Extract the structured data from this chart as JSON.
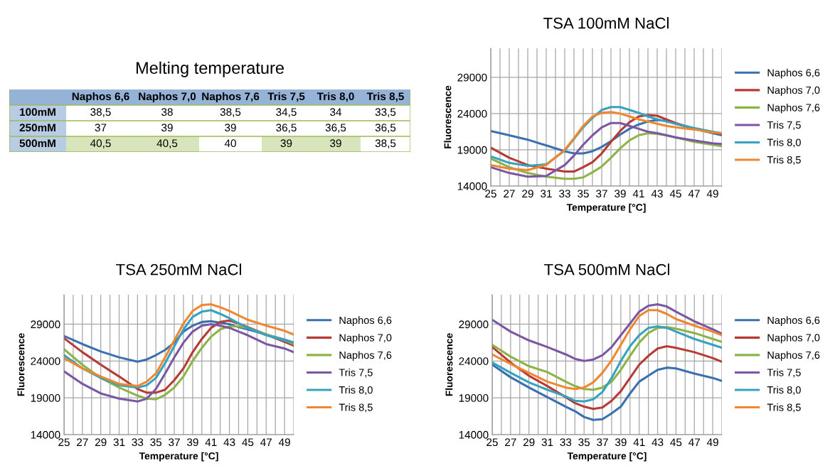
{
  "chart_data": [
    {
      "type": "other",
      "title": "Melting temperature",
      "categories": [
        "Naphos 6,6",
        "Naphos 7,0",
        "Naphos 7,6",
        "Tris 7,5",
        "Tris 8,0",
        "Tris 8,5"
      ],
      "y_categories": [
        "100mM",
        "250mM",
        "500mM"
      ],
      "cell_labels": [
        [
          "38,5",
          "38",
          "38,5",
          "34,5",
          "34",
          "33,5"
        ],
        [
          "37",
          "39",
          "39",
          "36,5",
          "36,5",
          "36,5"
        ],
        [
          "40,5",
          "40,5",
          "40",
          "39",
          "39",
          "38,5"
        ]
      ],
      "colors": [
        [
          null,
          null,
          null,
          null,
          null,
          null
        ],
        [
          null,
          null,
          null,
          null,
          null,
          null
        ],
        [
          "#d7e4bc",
          "#d7e4bc",
          null,
          "#d7e4bc",
          "#d7e4bc",
          null
        ]
      ]
    },
    {
      "type": "line",
      "title": "TSA 100mM NaCl",
      "xlabel": "Temperature [°C]",
      "ylabel": "Fluorescence",
      "xlim": [
        25,
        50
      ],
      "ylim": [
        14000,
        33000
      ],
      "yticks": [
        14000,
        19000,
        24000,
        29000
      ],
      "xticks": [
        25,
        {
          "value": 26,
          "label": null
        },
        27,
        {
          "value": 28,
          "label": null
        },
        29,
        {
          "value": 30,
          "label": null
        },
        31,
        {
          "value": 32,
          "label": null
        },
        33,
        {
          "value": 34,
          "label": null
        },
        35,
        {
          "value": 36,
          "label": null
        },
        37,
        {
          "value": 38,
          "label": null
        },
        39,
        {
          "value": 40,
          "label": null
        },
        41,
        {
          "value": 42,
          "label": null
        },
        43,
        {
          "value": 44,
          "label": null
        },
        45,
        {
          "value": 46,
          "label": null
        },
        47,
        {
          "value": 48,
          "label": null
        },
        49,
        {
          "value": 50,
          "label": null
        }
      ],
      "grid": true,
      "legend": "right",
      "x": [
        25,
        27,
        29,
        31,
        33,
        34,
        35,
        36,
        37,
        38,
        39,
        40,
        41,
        42,
        43,
        44,
        45,
        47,
        49,
        50
      ],
      "series": [
        {
          "name": "Naphos 6,6",
          "color": "#3a6fb0",
          "values": [
            21600,
            21000,
            20400,
            19600,
            18800,
            18500,
            18500,
            18800,
            19400,
            20200,
            21100,
            21900,
            22500,
            22900,
            23100,
            23000,
            22600,
            21900,
            21300,
            21000
          ]
        },
        {
          "name": "Naphos 7,0",
          "color": "#b83a34",
          "values": [
            19300,
            17900,
            16900,
            16400,
            16000,
            16000,
            16600,
            17300,
            18500,
            20100,
            21600,
            22800,
            23600,
            23800,
            23700,
            23200,
            22700,
            21900,
            21400,
            21200
          ]
        },
        {
          "name": "Naphos 7,6",
          "color": "#8db347",
          "values": [
            17800,
            16600,
            15800,
            15300,
            15000,
            15000,
            15200,
            15900,
            16700,
            17900,
            19200,
            20300,
            21000,
            21300,
            21200,
            21000,
            20700,
            20100,
            19700,
            19500
          ]
        },
        {
          "name": "Tris 7,5",
          "color": "#7b56a3",
          "values": [
            16600,
            15800,
            15300,
            15400,
            16900,
            18200,
            19700,
            21000,
            22100,
            22700,
            22700,
            22300,
            21900,
            21500,
            21300,
            21000,
            20700,
            20300,
            19900,
            19800
          ]
        },
        {
          "name": "Tris 8,0",
          "color": "#35a3c0",
          "values": [
            18100,
            17200,
            16800,
            17000,
            18900,
            20500,
            22100,
            23400,
            24500,
            24900,
            24900,
            24500,
            24100,
            23600,
            23200,
            22900,
            22600,
            22000,
            21500,
            21300
          ]
        },
        {
          "name": "Tris 8,5",
          "color": "#f2862e",
          "values": [
            16900,
            16400,
            16200,
            16900,
            19000,
            20600,
            22300,
            23600,
            24100,
            24200,
            24000,
            23600,
            23200,
            22900,
            22600,
            22300,
            22100,
            21800,
            21400,
            21300
          ]
        }
      ]
    },
    {
      "type": "line",
      "title": "TSA 250mM NaCl",
      "xlabel": "Temperature [°C]",
      "ylabel": "Fluorescence",
      "xlim": [
        25,
        50
      ],
      "ylim": [
        14000,
        33000
      ],
      "yticks": [
        14000,
        19000,
        24000,
        29000
      ],
      "xticks": [
        25,
        {
          "value": 26,
          "label": null
        },
        27,
        {
          "value": 28,
          "label": null
        },
        29,
        {
          "value": 30,
          "label": null
        },
        31,
        {
          "value": 32,
          "label": null
        },
        33,
        {
          "value": 34,
          "label": null
        },
        35,
        {
          "value": 36,
          "label": null
        },
        37,
        {
          "value": 38,
          "label": null
        },
        39,
        {
          "value": 40,
          "label": null
        },
        41,
        {
          "value": 42,
          "label": null
        },
        43,
        {
          "value": 44,
          "label": null
        },
        45,
        {
          "value": 46,
          "label": null
        },
        47,
        {
          "value": 48,
          "label": null
        },
        49,
        {
          "value": 50,
          "label": null
        }
      ],
      "grid": true,
      "legend": "right",
      "x": [
        25,
        27,
        29,
        31,
        33,
        34,
        35,
        36,
        37,
        38,
        39,
        40,
        41,
        42,
        43,
        44,
        45,
        47,
        49,
        50
      ],
      "series": [
        {
          "name": "Naphos 6,6",
          "color": "#3a6fb0",
          "values": [
            27400,
            26300,
            25300,
            24500,
            23900,
            24200,
            24800,
            25500,
            26500,
            28000,
            28800,
            29300,
            29400,
            29200,
            29000,
            28600,
            28300,
            27600,
            26900,
            26500
          ]
        },
        {
          "name": "Naphos 7,0",
          "color": "#b83a34",
          "values": [
            27100,
            25200,
            23500,
            21900,
            20200,
            19700,
            19700,
            20100,
            21400,
            23000,
            25200,
            27000,
            28500,
            29300,
            29500,
            29100,
            28600,
            27600,
            26600,
            26100
          ]
        },
        {
          "name": "Naphos 7,6",
          "color": "#8db347",
          "values": [
            25600,
            23500,
            21700,
            20400,
            19300,
            18900,
            18800,
            19400,
            20400,
            21900,
            24000,
            25800,
            27300,
            28300,
            28700,
            28700,
            28500,
            27600,
            26800,
            26300
          ]
        },
        {
          "name": "Tris 7,5",
          "color": "#7b56a3",
          "values": [
            22600,
            20900,
            19600,
            18900,
            18500,
            18900,
            20200,
            22300,
            24500,
            26500,
            28000,
            28800,
            29000,
            28800,
            28500,
            28000,
            27500,
            26300,
            25700,
            25200
          ]
        },
        {
          "name": "Tris 8,0",
          "color": "#35a3c0",
          "values": [
            24800,
            23000,
            21700,
            20700,
            20400,
            20700,
            21700,
            23700,
            26000,
            28300,
            30000,
            30700,
            30900,
            30400,
            29800,
            29100,
            28500,
            27500,
            26800,
            26500
          ]
        },
        {
          "name": "Tris 8,5",
          "color": "#f2862e",
          "values": [
            24400,
            23000,
            21900,
            20900,
            20600,
            21200,
            22300,
            24500,
            26800,
            29100,
            30800,
            31600,
            31700,
            31300,
            30800,
            30200,
            29600,
            28800,
            28100,
            27600
          ]
        }
      ]
    },
    {
      "type": "line",
      "title": "TSA 500mM NaCl",
      "xlabel": "Temperature [°C]",
      "ylabel": "Fluorescence",
      "xlim": [
        25,
        50
      ],
      "ylim": [
        14000,
        33000
      ],
      "yticks": [
        14000,
        19000,
        24000,
        29000
      ],
      "xticks": [
        25,
        {
          "value": 26,
          "label": null
        },
        27,
        {
          "value": 28,
          "label": null
        },
        29,
        {
          "value": 30,
          "label": null
        },
        31,
        {
          "value": 32,
          "label": null
        },
        33,
        {
          "value": 34,
          "label": null
        },
        35,
        {
          "value": 36,
          "label": null
        },
        37,
        {
          "value": 38,
          "label": null
        },
        39,
        {
          "value": 40,
          "label": null
        },
        41,
        {
          "value": 42,
          "label": null
        },
        43,
        {
          "value": 44,
          "label": null
        },
        45,
        {
          "value": 46,
          "label": null
        },
        47,
        {
          "value": 48,
          "label": null
        },
        49,
        {
          "value": 50,
          "label": null
        }
      ],
      "grid": true,
      "legend": "right",
      "x": [
        25,
        27,
        29,
        31,
        33,
        34,
        35,
        36,
        37,
        38,
        39,
        40,
        41,
        42,
        43,
        44,
        45,
        47,
        49,
        50
      ],
      "series": [
        {
          "name": "Naphos 6,6",
          "color": "#3a6fb0",
          "values": [
            23500,
            21800,
            20400,
            19100,
            17800,
            17200,
            16400,
            16000,
            16100,
            16900,
            17800,
            19600,
            21200,
            22000,
            22800,
            23100,
            23000,
            22300,
            21700,
            21300
          ]
        },
        {
          "name": "Naphos 7,0",
          "color": "#b83a34",
          "values": [
            25900,
            23800,
            22000,
            20600,
            19100,
            18300,
            17800,
            17500,
            17700,
            18600,
            19900,
            21700,
            23500,
            24700,
            25700,
            26000,
            25800,
            25200,
            24400,
            23900
          ]
        },
        {
          "name": "Naphos 7,6",
          "color": "#8db347",
          "values": [
            26200,
            24600,
            23300,
            22500,
            21200,
            20600,
            20200,
            20100,
            20400,
            21200,
            22800,
            24700,
            26500,
            27800,
            28500,
            28600,
            28400,
            27800,
            27000,
            26600
          ]
        },
        {
          "name": "Tris 7,5",
          "color": "#7b56a3",
          "values": [
            29600,
            28000,
            26800,
            25900,
            24900,
            24300,
            24000,
            24200,
            24800,
            25900,
            27500,
            29100,
            30700,
            31500,
            31700,
            31400,
            30700,
            29400,
            28300,
            27700
          ]
        },
        {
          "name": "Tris 8,0",
          "color": "#35a3c0",
          "values": [
            23800,
            22400,
            21100,
            20100,
            19200,
            18600,
            18500,
            18800,
            19800,
            21700,
            24000,
            26000,
            27500,
            28500,
            28700,
            28500,
            28000,
            27000,
            26200,
            25800
          ]
        },
        {
          "name": "Tris 8,5",
          "color": "#f2862e",
          "values": [
            24900,
            23600,
            22400,
            21200,
            20400,
            20200,
            20400,
            21100,
            22400,
            24100,
            26200,
            28300,
            30100,
            30900,
            30900,
            30400,
            29700,
            28800,
            28000,
            27500
          ]
        }
      ]
    }
  ]
}
